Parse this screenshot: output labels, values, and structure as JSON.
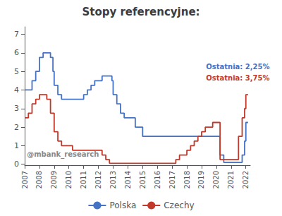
{
  "chart_data": {
    "type": "step",
    "title": "Stopy referencyjne:",
    "series": [
      {
        "name": "Polska",
        "color": "#4472c4",
        "x": [
          2007.0,
          2007.5,
          2007.75,
          2008.0,
          2008.25,
          2008.5,
          2008.75,
          2008.917,
          2009.0,
          2009.25,
          2009.5,
          2009.75,
          2010.0,
          2010.25,
          2010.5,
          2010.75,
          2011.0,
          2011.25,
          2011.5,
          2011.75,
          2012.0,
          2012.25,
          2012.5,
          2012.917,
          2013.0,
          2013.25,
          2013.5,
          2013.75,
          2014.0,
          2014.25,
          2014.5,
          2014.75,
          2015.0,
          2015.25,
          2015.5,
          2015.75,
          2016.0,
          2016.25,
          2016.5,
          2016.75,
          2017.0,
          2017.25,
          2017.5,
          2017.75,
          2018.0,
          2018.25,
          2018.5,
          2018.75,
          2019.0,
          2019.25,
          2019.5,
          2019.75,
          2020.0,
          2020.25,
          2020.5,
          2020.75,
          2021.0,
          2021.25,
          2021.5,
          2021.75,
          2021.917,
          2022.0,
          2022.15
        ],
        "values": [
          4.0,
          4.5,
          5.0,
          5.75,
          6.0,
          6.0,
          5.75,
          5.0,
          4.25,
          3.75,
          3.5,
          3.5,
          3.5,
          3.5,
          3.5,
          3.5,
          3.75,
          4.0,
          4.25,
          4.5,
          4.5,
          4.75,
          4.75,
          4.5,
          3.75,
          3.25,
          2.75,
          2.5,
          2.5,
          2.5,
          2.0,
          2.0,
          1.5,
          1.5,
          1.5,
          1.5,
          1.5,
          1.5,
          1.5,
          1.5,
          1.5,
          1.5,
          1.5,
          1.5,
          1.5,
          1.5,
          1.5,
          1.5,
          1.5,
          1.5,
          1.5,
          1.5,
          1.5,
          0.5,
          0.1,
          0.1,
          0.1,
          0.1,
          0.1,
          0.5,
          1.25,
          2.25,
          2.25
        ]
      },
      {
        "name": "Czechy",
        "color": "#c0392b",
        "x": [
          2007.0,
          2007.25,
          2007.5,
          2007.75,
          2008.0,
          2008.25,
          2008.5,
          2008.75,
          2009.0,
          2009.25,
          2009.5,
          2009.75,
          2010.0,
          2010.25,
          2010.5,
          2010.75,
          2011.0,
          2011.25,
          2011.5,
          2011.75,
          2012.0,
          2012.25,
          2012.5,
          2012.75,
          2013.0,
          2013.25,
          2013.5,
          2013.75,
          2014.0,
          2014.25,
          2014.5,
          2014.75,
          2015.0,
          2015.25,
          2015.5,
          2015.75,
          2016.0,
          2016.25,
          2016.5,
          2016.75,
          2017.0,
          2017.25,
          2017.5,
          2017.75,
          2018.0,
          2018.25,
          2018.5,
          2018.75,
          2019.0,
          2019.25,
          2019.5,
          2019.75,
          2020.0,
          2020.25,
          2020.5,
          2020.75,
          2021.0,
          2021.25,
          2021.5,
          2021.75,
          2021.917,
          2022.0,
          2022.15
        ],
        "values": [
          2.5,
          2.75,
          3.25,
          3.5,
          3.75,
          3.75,
          3.5,
          2.75,
          1.75,
          1.25,
          1.0,
          1.0,
          1.0,
          0.75,
          0.75,
          0.75,
          0.75,
          0.75,
          0.75,
          0.75,
          0.75,
          0.5,
          0.25,
          0.05,
          0.05,
          0.05,
          0.05,
          0.05,
          0.05,
          0.05,
          0.05,
          0.05,
          0.05,
          0.05,
          0.05,
          0.05,
          0.05,
          0.05,
          0.05,
          0.05,
          0.05,
          0.25,
          0.5,
          0.5,
          0.75,
          1.0,
          1.25,
          1.5,
          1.75,
          2.0,
          2.0,
          2.25,
          2.25,
          0.25,
          0.25,
          0.25,
          0.25,
          0.25,
          1.5,
          2.5,
          3.0,
          3.75,
          3.75
        ]
      }
    ],
    "annotations": [
      {
        "text": "Ostatnia: 2,25%",
        "x": 2019.3,
        "y": 5.05,
        "color": "#4472c4"
      },
      {
        "text": "Ostatnia: 3,75%",
        "x": 2019.3,
        "y": 4.45,
        "color": "#c0392b"
      },
      {
        "text": "@mbank_research",
        "x": 2007.15,
        "y": 0.35,
        "color": "#888888"
      }
    ],
    "xlim": [
      2007.0,
      2022.3
    ],
    "xticks": [
      2007,
      2008,
      2009,
      2010,
      2011,
      2012,
      2013,
      2014,
      2015,
      2016,
      2017,
      2018,
      2019,
      2020,
      2021,
      2022
    ],
    "ylim": [
      -0.05,
      7.4
    ],
    "yticks": [
      0,
      1,
      2,
      3,
      4,
      5,
      6,
      7
    ],
    "grid": false,
    "legend": "bottom"
  }
}
